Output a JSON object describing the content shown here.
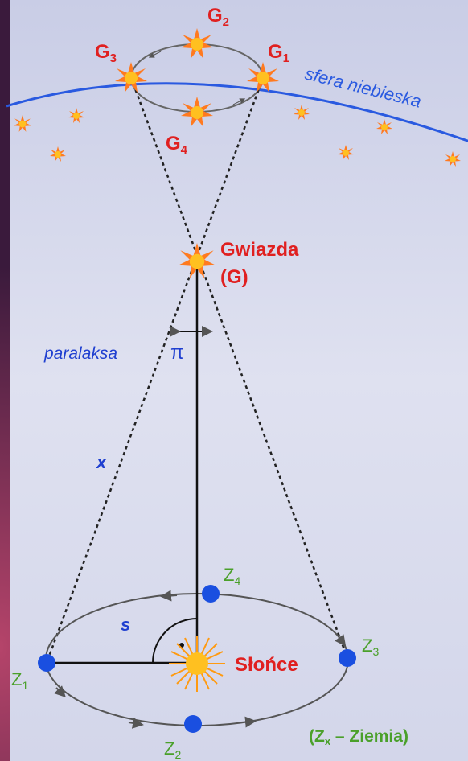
{
  "star_orbit": {
    "labels": [
      {
        "main": "G",
        "sub": "2"
      },
      {
        "main": "G",
        "sub": "3"
      },
      {
        "main": "G",
        "sub": "1"
      },
      {
        "main": "G",
        "sub": "4"
      }
    ]
  },
  "sky_sphere": "sfera niebieska",
  "star": {
    "name": "Gwiazda",
    "symbol": "(G)"
  },
  "parallax": {
    "label": "paralaksa",
    "symbol": "π"
  },
  "distance": "x",
  "radius": "s",
  "sun": "Słońce",
  "earth_orbit": {
    "labels": [
      {
        "main": "Z",
        "sub": "1"
      },
      {
        "main": "Z",
        "sub": "2"
      },
      {
        "main": "Z",
        "sub": "3"
      },
      {
        "main": "Z",
        "sub": "4"
      }
    ]
  },
  "legend": {
    "open": "(Z",
    "sub": "x",
    "rest": " – Ziemia)"
  }
}
